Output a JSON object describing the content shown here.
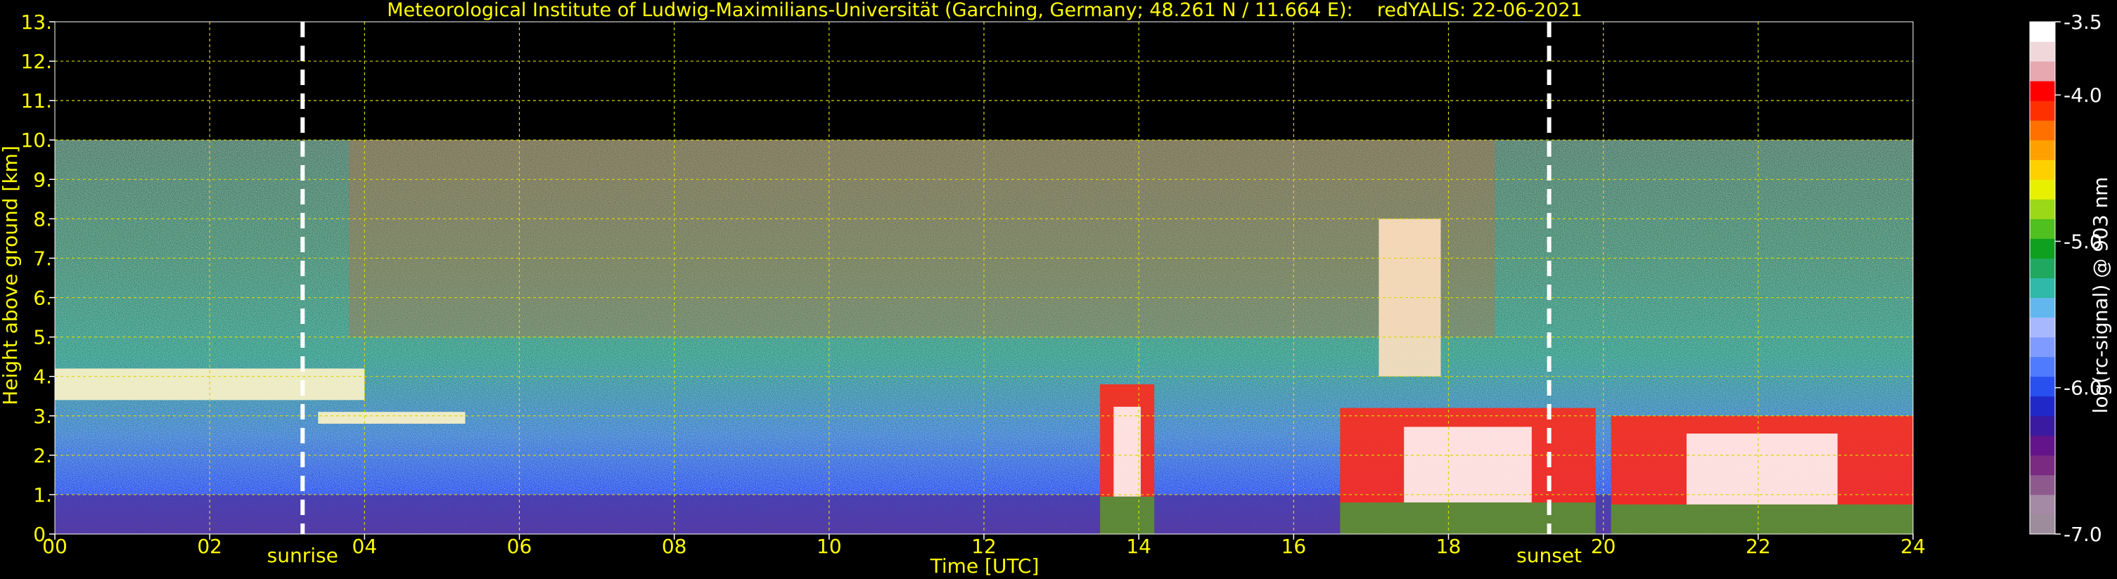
{
  "chart_data": {
    "type": "heatmap",
    "title": "Meteorological Institute of Ludwig-Maximilians-Universität (Garching, Germany; 48.261 N / 11.664 E):    redYALIS: 22-06-2021",
    "xlabel": "Time [UTC]",
    "ylabel": "Height above ground [km]",
    "xlim": [
      0,
      24
    ],
    "ylim": [
      0,
      13
    ],
    "grid": true,
    "x_ticks": [
      0,
      2,
      4,
      6,
      8,
      10,
      12,
      14,
      16,
      18,
      20,
      22,
      24
    ],
    "x_tick_labels": [
      "00",
      "02",
      "04",
      "06",
      "08",
      "10",
      "12",
      "14",
      "16",
      "18",
      "20",
      "22",
      "24"
    ],
    "y_ticks": [
      0,
      1,
      2,
      3,
      4,
      5,
      6,
      7,
      8,
      9,
      10,
      11,
      12,
      13
    ],
    "y_tick_labels": [
      "0.",
      "1.",
      "2.",
      "3.",
      "4.",
      "5.",
      "6.",
      "7.",
      "8.",
      "9.",
      "10.",
      "11.",
      "12.",
      "13."
    ],
    "data_top_km": 10,
    "markers": [
      {
        "label": "sunrise",
        "x": 3.2
      },
      {
        "label": "sunset",
        "x": 19.3
      }
    ],
    "colorbar": {
      "label": "log(rc-signal) @ 903 nm",
      "range": [
        -7.0,
        -3.5
      ],
      "tick_values": [
        -3.5,
        -4.0,
        -5.0,
        -6.0,
        -7.0
      ],
      "tick_labels": [
        "-3.5",
        "-4.0",
        "-5.0",
        "-6.0",
        "-7.0"
      ],
      "colors": [
        "#9c8c9c",
        "#a48aa4",
        "#8e5a8e",
        "#7a2a80",
        "#64148a",
        "#3a1aa0",
        "#2028c8",
        "#2850ee",
        "#4f7bff",
        "#7f9bff",
        "#a8b8ff",
        "#62b8ee",
        "#30b8a8",
        "#20a860",
        "#10a020",
        "#50c020",
        "#9ad818",
        "#e8f000",
        "#ffd000",
        "#ffa000",
        "#ff7000",
        "#ff3000",
        "#ff0000",
        "#e8a8b0",
        "#f0d8da",
        "#ffffff"
      ]
    },
    "features": [
      {
        "name": "boundary layer",
        "x": [
          0,
          24
        ],
        "y": [
          0,
          1.0
        ]
      },
      {
        "name": "cloud layer",
        "x": [
          0.0,
          4.0
        ],
        "y": [
          3.4,
          4.2
        ]
      },
      {
        "name": "cloud layer",
        "x": [
          3.4,
          5.3
        ],
        "y": [
          2.8,
          3.1
        ]
      },
      {
        "name": "convective clouds",
        "x": [
          13.5,
          14.2
        ],
        "y": [
          0.0,
          3.8
        ]
      },
      {
        "name": "convective clouds",
        "x": [
          16.6,
          19.9
        ],
        "y": [
          0.0,
          3.2
        ]
      },
      {
        "name": "cirrus streak",
        "x": [
          17.1,
          17.9
        ],
        "y": [
          4.0,
          8.0
        ]
      },
      {
        "name": "convective clouds",
        "x": [
          20.1,
          24.0
        ],
        "y": [
          0.0,
          3.0
        ]
      }
    ]
  },
  "colors": {
    "text": "#ffff00",
    "grid": "#d8d800",
    "background": "#000000",
    "marker": "#ffffff"
  }
}
